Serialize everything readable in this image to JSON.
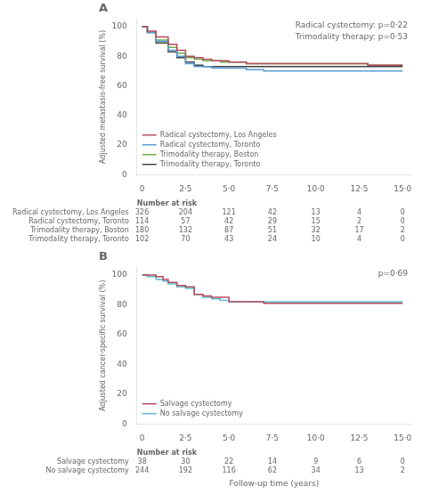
{
  "chart_data": [
    {
      "type": "step",
      "title": "A",
      "ylabel": "Adjusted metastasis-free survival (%)",
      "annotation": "Radical cystectomy: p=0·22\nTrimodality therapy: p=0·53",
      "xlim": [
        -0.3,
        15.5
      ],
      "xticks": [
        0,
        {
          "value": 2.5,
          "label": "2·5"
        },
        {
          "value": 5,
          "label": "5·0"
        },
        {
          "value": 7.5,
          "label": "7·5"
        },
        {
          "value": 10,
          "label": "10·0"
        },
        {
          "value": 12.5,
          "label": "12·5"
        },
        {
          "value": 15,
          "label": "15·0"
        }
      ],
      "ylim": [
        0,
        105
      ],
      "yticks": [
        0,
        20,
        40,
        60,
        80,
        100
      ],
      "grid": false,
      "legend": "lower left",
      "series": [
        {
          "name": "Radical cystectomy, Los Angeles",
          "color": "#b5495b",
          "x": [
            0,
            0.3,
            0.8,
            1.5,
            2.0,
            2.5,
            3.0,
            3.5,
            4.0,
            4.5,
            5.0,
            5.5,
            6.0,
            6.5,
            7.0,
            7.5,
            8.0,
            9.0,
            10.0,
            11.0,
            12.0,
            12.5,
            13.0,
            14.0,
            15.0
          ],
          "values": [
            100,
            97,
            93,
            88,
            84,
            80,
            79,
            78,
            77,
            77,
            76,
            76,
            75,
            75,
            75,
            75,
            75,
            75,
            75,
            75,
            75,
            75,
            74,
            74,
            74
          ]
        },
        {
          "name": "Radical cystectomy, Toronto",
          "color": "#5b9bd5",
          "x": [
            0,
            0.3,
            0.8,
            1.5,
            2.0,
            2.5,
            3.0,
            3.5,
            4.0,
            4.5,
            5.0,
            5.5,
            6.0,
            6.5,
            7.0,
            7.5,
            8.0,
            9.0,
            10.0,
            11.0,
            12.0,
            12.5,
            13.0,
            14.0,
            15.0
          ],
          "values": [
            100,
            96,
            90,
            84,
            80,
            75,
            73,
            73,
            72,
            72,
            72,
            72,
            71,
            71,
            70,
            70,
            70,
            70,
            70,
            70,
            70,
            70,
            70,
            70,
            70
          ]
        },
        {
          "name": "Trimodality therapy, Boston",
          "color": "#70ad47",
          "x": [
            0,
            0.3,
            0.8,
            1.5,
            2.0,
            2.5,
            3.0,
            3.5,
            4.0,
            4.5,
            5.0,
            5.5,
            6.0,
            6.5,
            7.0,
            7.5,
            8.0,
            9.0,
            10.0,
            11.0,
            12.0,
            12.5,
            13.0,
            14.0,
            15.0
          ],
          "values": [
            100,
            96,
            91,
            86,
            82,
            79,
            78,
            77,
            77,
            76,
            76,
            76,
            75,
            75,
            75,
            75,
            75,
            75,
            75,
            75,
            75,
            75,
            74,
            74,
            74
          ]
        },
        {
          "name": "Trimodality therapy, Toronto",
          "color": "#404040",
          "x": [
            0,
            0.3,
            0.8,
            1.5,
            2.0,
            2.5,
            3.0,
            3.5,
            4.0,
            4.5,
            5.0,
            5.5,
            6.0,
            6.5,
            7.0,
            7.5,
            8.0,
            9.0,
            10.0,
            11.0,
            12.0,
            12.5,
            13.0,
            14.0,
            15.0
          ],
          "values": [
            100,
            96,
            89,
            83,
            79,
            76,
            74,
            73,
            73,
            73,
            73,
            73,
            73,
            73,
            73,
            73,
            73,
            73,
            73,
            73,
            73,
            73,
            73,
            73,
            73
          ]
        }
      ],
      "risk_table": {
        "title": "Number at risk",
        "x": [
          0,
          2.5,
          5,
          7.5,
          10,
          12.5,
          15
        ],
        "rows": [
          {
            "name": "Radical cystectomy, Los Angeles",
            "values": [
              326,
              204,
              121,
              42,
              13,
              4,
              0
            ]
          },
          {
            "name": "Radical cystectomy, Toronto",
            "values": [
              114,
              57,
              42,
              29,
              15,
              2,
              0
            ]
          },
          {
            "name": "Trimodality therapy, Boston",
            "values": [
              180,
              132,
              87,
              51,
              32,
              17,
              2
            ]
          },
          {
            "name": "Trimodality therapy, Toronto",
            "values": [
              102,
              70,
              43,
              24,
              10,
              4,
              0
            ]
          }
        ]
      }
    },
    {
      "type": "step",
      "title": "B",
      "ylabel": "Adjusted cancer-specific survival (%)",
      "xlabel": "Follow-up time (years)",
      "annotation": "p=0·69",
      "xlim": [
        -0.3,
        15.5
      ],
      "xticks": [
        0,
        {
          "value": 2.5,
          "label": "2·5"
        },
        {
          "value": 5,
          "label": "5·0"
        },
        {
          "value": 7.5,
          "label": "7·5"
        },
        {
          "value": 10,
          "label": "10·0"
        },
        {
          "value": 12.5,
          "label": "12·5"
        },
        {
          "value": 15,
          "label": "15·0"
        }
      ],
      "ylim": [
        0,
        105
      ],
      "yticks": [
        0,
        20,
        40,
        60,
        80,
        100
      ],
      "grid": false,
      "legend": "lower left",
      "series": [
        {
          "name": "Salvage cystectomy",
          "color": "#b5495b",
          "x": [
            0,
            0.3,
            0.8,
            1.2,
            1.5,
            2.0,
            2.5,
            3.0,
            3.5,
            4.0,
            4.5,
            5.0,
            5.5,
            6.0,
            6.5,
            7.0,
            7.5,
            8.0,
            9.0,
            10.0,
            11.0,
            12.0,
            13.0,
            14.0,
            15.0
          ],
          "values": [
            100,
            100,
            99,
            97,
            95,
            93,
            92,
            87,
            86,
            85,
            85,
            82,
            82,
            82,
            82,
            81,
            81,
            81,
            81,
            81,
            81,
            81,
            81,
            81,
            81
          ]
        },
        {
          "name": "No salvage cystectomy",
          "color": "#5bbcce",
          "x": [
            0,
            0.3,
            0.8,
            1.2,
            1.5,
            2.0,
            2.5,
            3.0,
            3.5,
            4.0,
            4.5,
            5.0,
            5.5,
            6.0,
            6.5,
            7.0,
            7.5,
            8.0,
            9.0,
            10.0,
            11.0,
            12.0,
            13.0,
            14.0,
            15.0
          ],
          "values": [
            100,
            99,
            97,
            96,
            94,
            92,
            91,
            87,
            85,
            84,
            83,
            82,
            82,
            82,
            82,
            82,
            82,
            82,
            82,
            82,
            82,
            82,
            82,
            82,
            82
          ]
        }
      ],
      "risk_table": {
        "title": "Number at risk",
        "x": [
          0,
          2.5,
          5,
          7.5,
          10,
          12.5,
          15
        ],
        "rows": [
          {
            "name": "Salvage cystectomy",
            "values": [
              38,
              30,
              22,
              14,
              9,
              6,
              0
            ]
          },
          {
            "name": "No salvage cystectomy",
            "values": [
              244,
              192,
              116,
              62,
              34,
              13,
              2
            ]
          }
        ]
      }
    }
  ]
}
